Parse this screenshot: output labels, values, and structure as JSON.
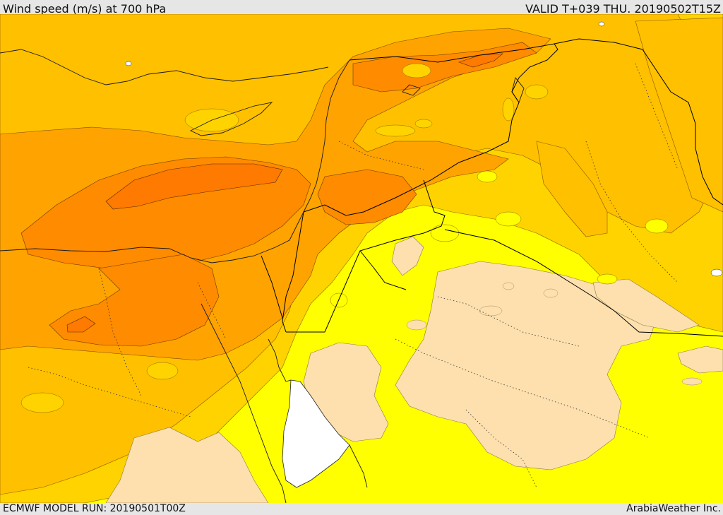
{
  "header": {
    "title": "Wind speed (m/s) at 700 hPa",
    "valid_time": "VALID T+039 THU. 20190502T15Z"
  },
  "footer": {
    "model_run": "ECMWF MODEL RUN: 20190501T00Z",
    "provider": "ArabiaWeather Inc."
  },
  "palette": {
    "pale": "#fde0ad",
    "yellow": "#ffff00",
    "gold": "#ffd300",
    "amber": "#ffc000",
    "orange": "#ffa300",
    "dark_orange": "#ff8b00",
    "deep_orange": "#ff7a00",
    "water": "#ffffff"
  }
}
